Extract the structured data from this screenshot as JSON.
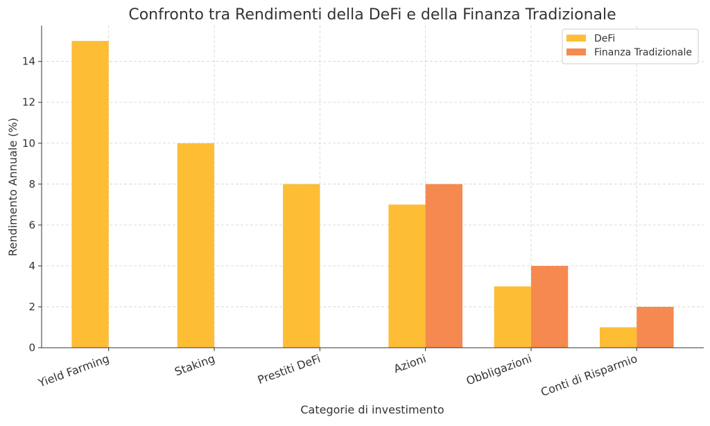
{
  "chart_data": {
    "type": "bar",
    "title": "Confronto tra Rendimenti della DeFi e della Finanza Tradizionale",
    "xlabel": "Categorie di investimento",
    "ylabel": "Rendimento Annuale (%)",
    "categories": [
      "Yield Farming",
      "Staking",
      "Prestiti DeFi",
      "Azioni",
      "Obbligazioni",
      "Conti di Risparmio"
    ],
    "series": [
      {
        "name": "DeFi",
        "values": [
          15,
          10,
          8,
          7,
          3,
          1
        ],
        "color": "#fdbd35"
      },
      {
        "name": "Finanza Tradizionale",
        "values": [
          0,
          0,
          0,
          8,
          4,
          2
        ],
        "color": "#f5894f"
      }
    ],
    "yticks": [
      "0",
      "2",
      "4",
      "6",
      "8",
      "10",
      "12",
      "14"
    ],
    "ylim": [
      0,
      15.75
    ],
    "grid": true,
    "legend_position": "top-right"
  }
}
